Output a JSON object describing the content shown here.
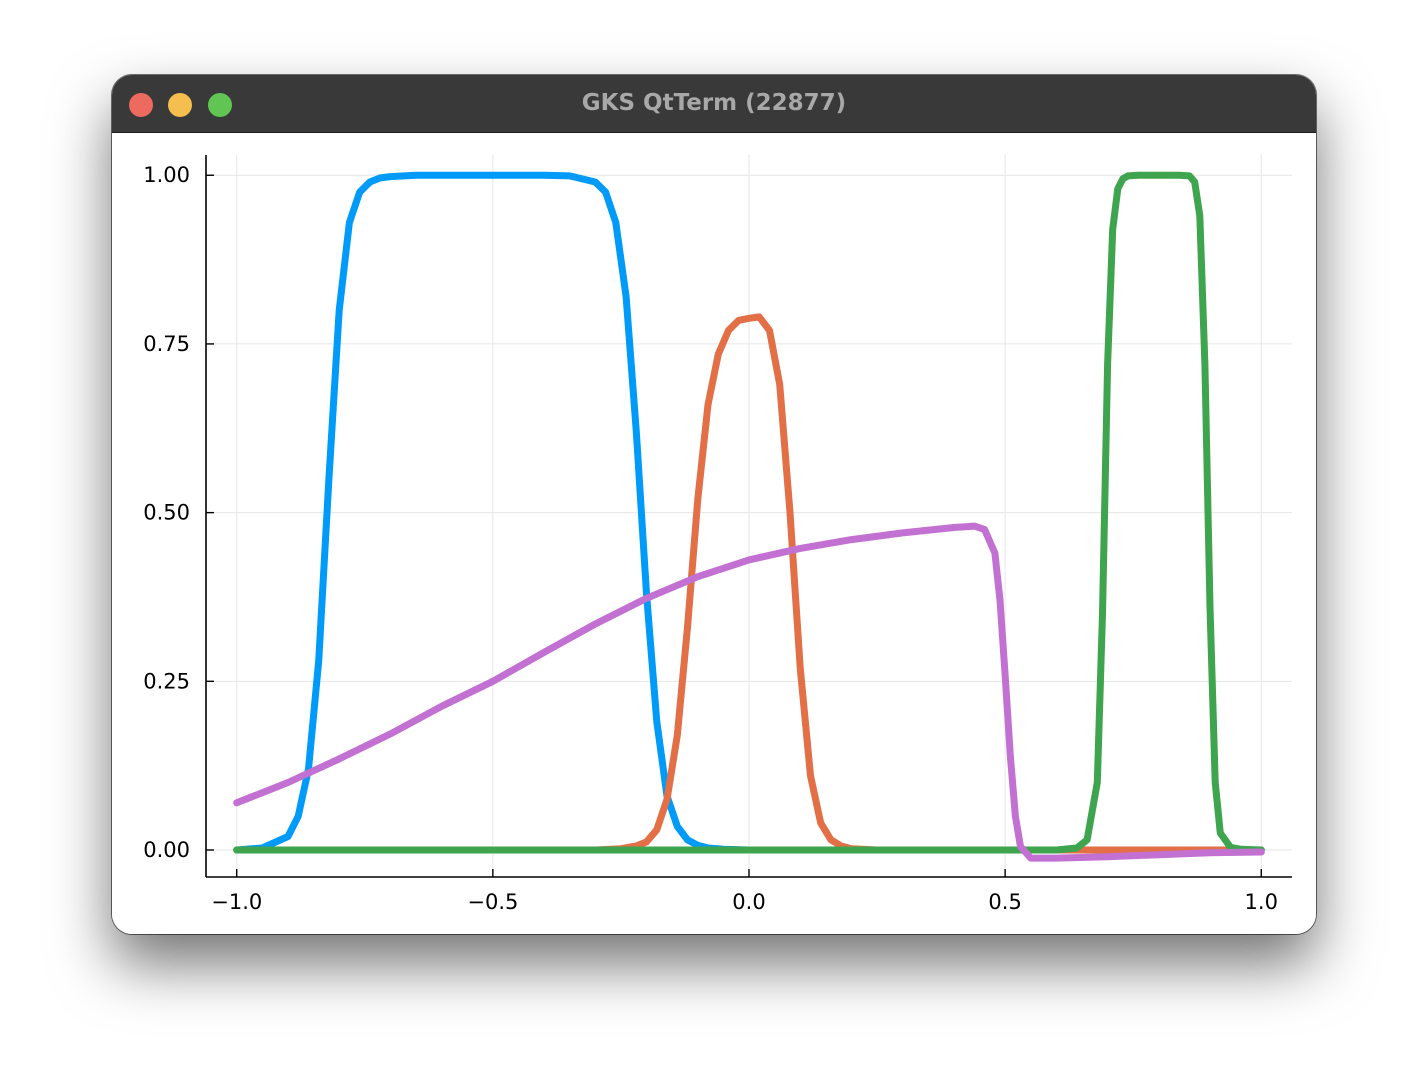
{
  "window": {
    "title": "GKS QtTerm (22877)",
    "controls": {
      "close_color": "#ec6a5e",
      "minimize_color": "#f4bf4f",
      "zoom_color": "#61c554"
    }
  },
  "chart_data": {
    "type": "line",
    "title": "",
    "xlabel": "",
    "ylabel": "",
    "xlim": [
      -1.06,
      1.06
    ],
    "ylim": [
      -0.04,
      1.03
    ],
    "x_ticks": [
      -1.0,
      -0.5,
      0.0,
      0.5,
      1.0
    ],
    "x_tick_labels": [
      "−1.0",
      "−0.5",
      "0.0",
      "0.5",
      "1.0"
    ],
    "y_ticks": [
      0.0,
      0.25,
      0.5,
      0.75,
      1.0
    ],
    "y_tick_labels": [
      "0.00",
      "0.25",
      "0.50",
      "0.75",
      "1.00"
    ],
    "grid": true,
    "legend": "none",
    "series": [
      {
        "color": "#009af9",
        "x": [
          -1.0,
          -0.95,
          -0.9,
          -0.88,
          -0.86,
          -0.84,
          -0.82,
          -0.8,
          -0.78,
          -0.76,
          -0.74,
          -0.72,
          -0.7,
          -0.65,
          -0.6,
          -0.5,
          -0.4,
          -0.35,
          -0.3,
          -0.28,
          -0.26,
          -0.24,
          -0.22,
          -0.2,
          -0.18,
          -0.16,
          -0.14,
          -0.12,
          -0.1,
          -0.08,
          -0.05,
          0.0,
          0.1,
          0.5,
          1.0
        ],
        "y": [
          0.0,
          0.003,
          0.02,
          0.05,
          0.12,
          0.28,
          0.55,
          0.8,
          0.93,
          0.975,
          0.99,
          0.996,
          0.998,
          1.0,
          1.0,
          1.0,
          1.0,
          0.999,
          0.99,
          0.975,
          0.93,
          0.82,
          0.62,
          0.38,
          0.19,
          0.08,
          0.035,
          0.015,
          0.007,
          0.003,
          0.001,
          0.0,
          0.0,
          0.0,
          0.0
        ]
      },
      {
        "color": "#e26f46",
        "x": [
          -1.0,
          -0.5,
          -0.3,
          -0.25,
          -0.22,
          -0.2,
          -0.18,
          -0.16,
          -0.14,
          -0.12,
          -0.1,
          -0.08,
          -0.06,
          -0.04,
          -0.02,
          0.0,
          0.02,
          0.04,
          0.06,
          0.08,
          0.1,
          0.12,
          0.14,
          0.16,
          0.18,
          0.2,
          0.25,
          0.3,
          0.5,
          0.7,
          1.0
        ],
        "y": [
          0.0,
          0.0,
          0.0,
          0.002,
          0.006,
          0.012,
          0.03,
          0.075,
          0.17,
          0.33,
          0.52,
          0.66,
          0.735,
          0.77,
          0.785,
          0.788,
          0.79,
          0.77,
          0.69,
          0.5,
          0.27,
          0.11,
          0.04,
          0.015,
          0.006,
          0.002,
          0.0,
          0.0,
          0.0,
          0.0,
          0.0
        ]
      },
      {
        "color": "#3ea44e",
        "x": [
          -1.0,
          0.0,
          0.5,
          0.6,
          0.64,
          0.66,
          0.68,
          0.69,
          0.7,
          0.71,
          0.72,
          0.73,
          0.74,
          0.76,
          0.8,
          0.84,
          0.86,
          0.87,
          0.88,
          0.89,
          0.9,
          0.91,
          0.92,
          0.94,
          0.96,
          1.0
        ],
        "y": [
          0.0,
          0.0,
          0.0,
          0.0,
          0.003,
          0.015,
          0.1,
          0.35,
          0.72,
          0.92,
          0.98,
          0.995,
          0.999,
          1.0,
          1.0,
          1.0,
          0.999,
          0.99,
          0.94,
          0.72,
          0.36,
          0.1,
          0.025,
          0.004,
          0.001,
          0.0
        ]
      },
      {
        "color": "#c271d2",
        "x": [
          -1.0,
          -0.9,
          -0.8,
          -0.7,
          -0.6,
          -0.5,
          -0.4,
          -0.3,
          -0.2,
          -0.1,
          0.0,
          0.1,
          0.2,
          0.3,
          0.4,
          0.44,
          0.46,
          0.48,
          0.49,
          0.5,
          0.51,
          0.52,
          0.53,
          0.55,
          0.6,
          0.7,
          0.8,
          0.9,
          1.0
        ],
        "y": [
          0.07,
          0.1,
          0.135,
          0.172,
          0.213,
          0.25,
          0.293,
          0.335,
          0.373,
          0.405,
          0.43,
          0.447,
          0.46,
          0.47,
          0.478,
          0.48,
          0.475,
          0.44,
          0.37,
          0.26,
          0.14,
          0.05,
          0.005,
          -0.012,
          -0.012,
          -0.01,
          -0.007,
          -0.004,
          -0.003
        ]
      }
    ]
  }
}
